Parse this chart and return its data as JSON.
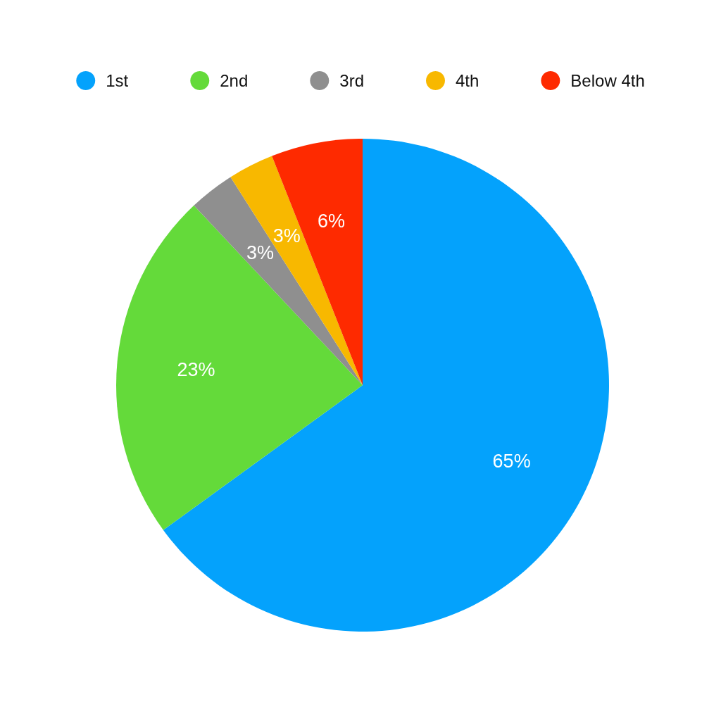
{
  "chart_data": {
    "type": "pie",
    "categories": [
      "1st",
      "2nd",
      "3rd",
      "4th",
      "Below 4th"
    ],
    "values": [
      65,
      23,
      3,
      3,
      6
    ],
    "colors": [
      "#04a2fc",
      "#64da3a",
      "#8f8f8f",
      "#f8b800",
      "#fe2a00"
    ],
    "value_labels": [
      "65%",
      "23%",
      "3%",
      "3%",
      "6%"
    ],
    "legend": "top"
  }
}
